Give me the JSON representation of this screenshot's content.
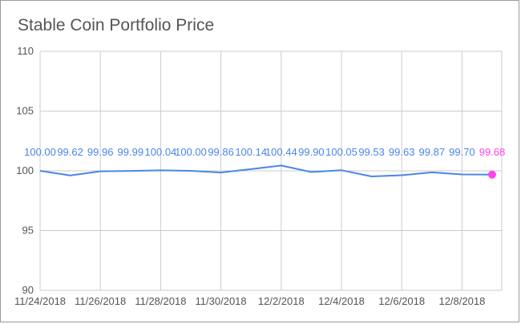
{
  "chart_data": {
    "type": "line",
    "title": "Stable Coin Portfolio Price",
    "xlabel": "",
    "ylabel": "",
    "ylim": [
      90,
      110
    ],
    "yticks": [
      90,
      95,
      100,
      105,
      110
    ],
    "xticks": [
      "11/24/2018",
      "11/26/2018",
      "11/28/2018",
      "11/30/2018",
      "12/2/2018",
      "12/4/2018",
      "12/6/2018",
      "12/8/2018"
    ],
    "grid": true,
    "legend": "none",
    "line_color": "#4a86e8",
    "highlight_color": "#ff44ee",
    "x": [
      "11/24/2018",
      "11/25/2018",
      "11/26/2018",
      "11/27/2018",
      "11/28/2018",
      "11/29/2018",
      "11/30/2018",
      "12/1/2018",
      "12/2/2018",
      "12/3/2018",
      "12/4/2018",
      "12/5/2018",
      "12/6/2018",
      "12/7/2018",
      "12/8/2018",
      "12/9/2018"
    ],
    "values": [
      100.0,
      99.62,
      99.96,
      99.99,
      100.04,
      100.0,
      99.86,
      100.14,
      100.44,
      99.9,
      100.05,
      99.53,
      99.63,
      99.87,
      99.7,
      99.68
    ],
    "data_labels": [
      "100.00",
      "99.62",
      "99.96",
      "99.99",
      "100.04",
      "100.00",
      "99.86",
      "100.14",
      "100.44",
      "99.90",
      "100.05",
      "99.53",
      "99.63",
      "99.87",
      "99.70",
      "99.68"
    ],
    "highlight_index": 15
  }
}
